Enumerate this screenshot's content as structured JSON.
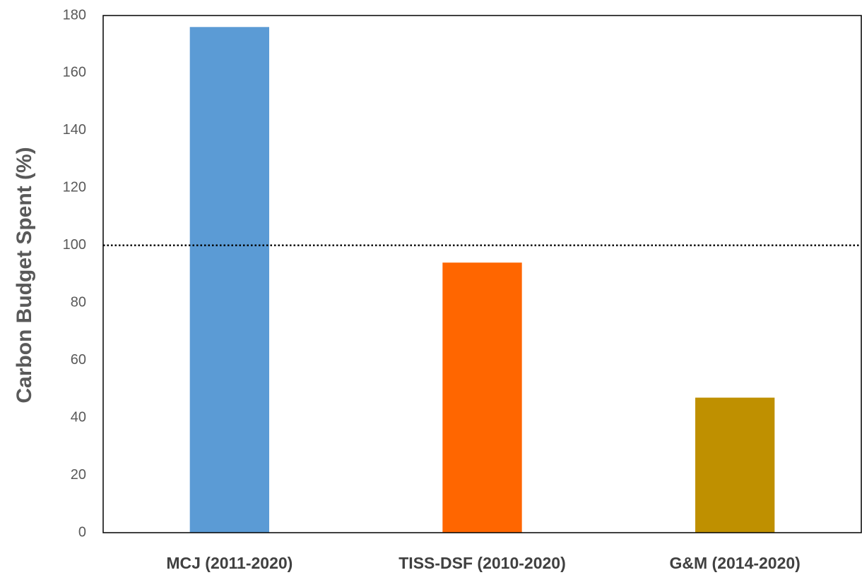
{
  "chart_data": {
    "type": "bar",
    "y_label": "Carbon Budget Spent (%)",
    "categories": [
      "MCJ (2011-2020)",
      "TISS-DSF (2010-2020)",
      "G&M (2014-2020)"
    ],
    "values": [
      176,
      94,
      47
    ],
    "colors": [
      "#5b9bd5",
      "#ff6600",
      "#bf9000"
    ],
    "ylim": [
      0,
      180
    ],
    "yticks": [
      0,
      20,
      40,
      60,
      80,
      100,
      120,
      140,
      160,
      180
    ],
    "reference_line": 100,
    "grid": false
  }
}
